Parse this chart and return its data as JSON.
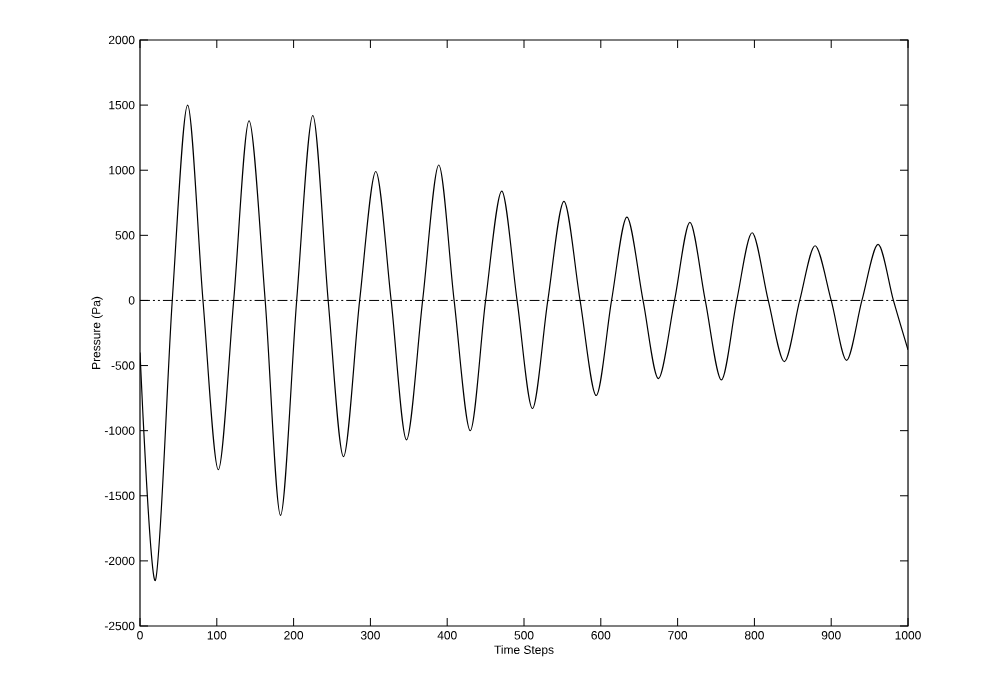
{
  "chart_data": {
    "type": "line",
    "xlabel": "Time Steps",
    "ylabel": "Pressure (Pa)",
    "xlim": [
      0,
      1000
    ],
    "ylim": [
      -2500,
      2000
    ],
    "xticks": [
      0,
      100,
      200,
      300,
      400,
      500,
      600,
      700,
      800,
      900,
      1000
    ],
    "yticks": [
      -2500,
      -2000,
      -1500,
      -1000,
      -500,
      0,
      500,
      1000,
      1500,
      2000
    ],
    "grid": false,
    "marker": "none",
    "line_style": "solid",
    "ref_lines": [
      {
        "axis": "y",
        "value": 0,
        "color": "#000000",
        "line_style": "dashed"
      }
    ],
    "series": [
      {
        "color": "#000000",
        "x": [
          0,
          20,
          42,
          62,
          82,
          102,
          122,
          142,
          163,
          183,
          204,
          225,
          245,
          265,
          286,
          307,
          327,
          347,
          368,
          389,
          409,
          430,
          450,
          471,
          491,
          511,
          531,
          552,
          573,
          594,
          614,
          634,
          655,
          675,
          696,
          716,
          736,
          757,
          777,
          797,
          818,
          839,
          859,
          879,
          900,
          920,
          940,
          961,
          981,
          1000
        ],
        "values": [
          -400,
          -2150,
          0,
          1500,
          0,
          -1300,
          0,
          1380,
          0,
          -1650,
          0,
          1420,
          0,
          -1200,
          0,
          990,
          0,
          -1070,
          0,
          1040,
          0,
          -1000,
          0,
          840,
          0,
          -830,
          0,
          760,
          0,
          -730,
          0,
          640,
          0,
          -600,
          0,
          600,
          0,
          -610,
          0,
          520,
          0,
          -470,
          0,
          420,
          0,
          -460,
          0,
          430,
          0,
          -380
        ]
      }
    ]
  }
}
